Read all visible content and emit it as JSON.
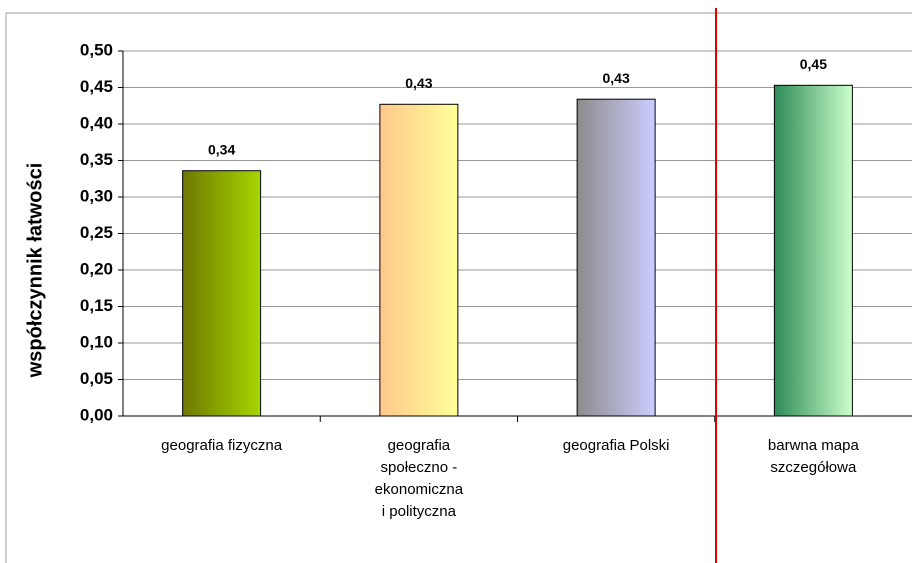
{
  "chart_data": {
    "type": "bar",
    "y_axis_label": "współczynnik łatwości",
    "categories": [
      "geografia fizyczna",
      "geografia\nspołeczno -\nekonomiczna\ni polityczna",
      "geografia Polski",
      "barwna mapa\nszczegółowa"
    ],
    "values": [
      0.336,
      0.427,
      0.434,
      0.453
    ],
    "value_labels": [
      "0,34",
      "0,43",
      "0,43",
      "0,45"
    ],
    "colors": [
      [
        "#6e7800",
        "#a6d600"
      ],
      [
        "#ffc88c",
        "#ffff99"
      ],
      [
        "#8c8c8c",
        "#ccccff"
      ],
      [
        "#2e8b57",
        "#ccffcc"
      ]
    ],
    "ylim": [
      0,
      0.5
    ],
    "yticks": [
      {
        "value": 0,
        "label": "0,00"
      },
      {
        "value": 0.05,
        "label": "0,05"
      },
      {
        "value": 0.1,
        "label": "0,10"
      },
      {
        "value": 0.15,
        "label": "0,15"
      },
      {
        "value": 0.2,
        "label": "0,20"
      },
      {
        "value": 0.25,
        "label": "0,25"
      },
      {
        "value": 0.3,
        "label": "0,30"
      },
      {
        "value": 0.35,
        "label": "0,35"
      },
      {
        "value": 0.4,
        "label": "0,40"
      },
      {
        "value": 0.45,
        "label": "0,45"
      },
      {
        "value": 0.5,
        "label": "0,50"
      }
    ],
    "grid": true
  }
}
